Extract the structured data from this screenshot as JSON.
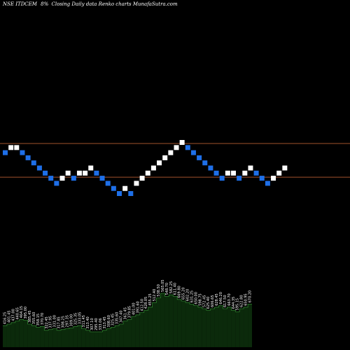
{
  "header": {
    "symbol": "NSE ITDCEM",
    "percent_box": "8%",
    "tail": "Closing Daily data  Renko  charts MunafaSutra.com"
  },
  "colors": {
    "background": "#000000",
    "up_brick": "#ffffff",
    "down_brick": "#1e6fe8",
    "line": "#a0522d",
    "volume_fill": "#0b2a0b",
    "volume_edge": "#2e7d2e"
  },
  "chart_data": {
    "type": "renko",
    "box_size_percent": 8,
    "bricks": [
      {
        "level": 3,
        "dir": "down"
      },
      {
        "level": 4,
        "dir": "up"
      },
      {
        "level": 4,
        "dir": "up"
      },
      {
        "level": 3,
        "dir": "down"
      },
      {
        "level": 2,
        "dir": "down"
      },
      {
        "level": 1,
        "dir": "down"
      },
      {
        "level": 0,
        "dir": "down"
      },
      {
        "level": -1,
        "dir": "down"
      },
      {
        "level": -2,
        "dir": "down"
      },
      {
        "level": -3,
        "dir": "down"
      },
      {
        "level": -2,
        "dir": "up"
      },
      {
        "level": -1,
        "dir": "up"
      },
      {
        "level": -2,
        "dir": "down"
      },
      {
        "level": -1,
        "dir": "up"
      },
      {
        "level": -1,
        "dir": "up"
      },
      {
        "level": 0,
        "dir": "up"
      },
      {
        "level": -1,
        "dir": "down"
      },
      {
        "level": -2,
        "dir": "down"
      },
      {
        "level": -3,
        "dir": "down"
      },
      {
        "level": -4,
        "dir": "down"
      },
      {
        "level": -5,
        "dir": "down"
      },
      {
        "level": -4,
        "dir": "up"
      },
      {
        "level": -5,
        "dir": "down"
      },
      {
        "level": -3,
        "dir": "up"
      },
      {
        "level": -2,
        "dir": "up"
      },
      {
        "level": -1,
        "dir": "up"
      },
      {
        "level": 0,
        "dir": "up"
      },
      {
        "level": 1,
        "dir": "up"
      },
      {
        "level": 2,
        "dir": "up"
      },
      {
        "level": 3,
        "dir": "up"
      },
      {
        "level": 4,
        "dir": "up"
      },
      {
        "level": 5,
        "dir": "up"
      },
      {
        "level": 4,
        "dir": "down"
      },
      {
        "level": 3,
        "dir": "down"
      },
      {
        "level": 2,
        "dir": "down"
      },
      {
        "level": 1,
        "dir": "down"
      },
      {
        "level": 0,
        "dir": "down"
      },
      {
        "level": -1,
        "dir": "down"
      },
      {
        "level": -2,
        "dir": "down"
      },
      {
        "level": -1,
        "dir": "up"
      },
      {
        "level": -1,
        "dir": "up"
      },
      {
        "level": -2,
        "dir": "down"
      },
      {
        "level": -1,
        "dir": "up"
      },
      {
        "level": 0,
        "dir": "up"
      },
      {
        "level": -1,
        "dir": "down"
      },
      {
        "level": -2,
        "dir": "down"
      },
      {
        "level": -3,
        "dir": "down"
      },
      {
        "level": -2,
        "dir": "up"
      },
      {
        "level": -1,
        "dir": "up"
      },
      {
        "level": 0,
        "dir": "up"
      }
    ],
    "reference_lines": [
      {
        "level": 4.8
      },
      {
        "level": -1.8
      }
    ],
    "volume_bars": [
      {
        "label": "416.25",
        "value": 0.28
      },
      {
        "label": "401.45",
        "value": 0.3
      },
      {
        "label": "437.00",
        "value": 0.32
      },
      {
        "label": "440.65",
        "value": 0.34
      },
      {
        "label": "464.15",
        "value": 0.36
      },
      {
        "label": "395.00",
        "value": 0.35
      },
      {
        "label": "385.45",
        "value": 0.3
      },
      {
        "label": "355.60",
        "value": 0.28
      },
      {
        "label": "358.15",
        "value": 0.26
      },
      {
        "label": "370.70",
        "value": 0.27
      },
      {
        "label": "322.45",
        "value": 0.22
      },
      {
        "label": "337.95",
        "value": 0.23
      },
      {
        "label": "331.00",
        "value": 0.24
      },
      {
        "label": "317.85",
        "value": 0.22
      },
      {
        "label": "308.25",
        "value": 0.23
      },
      {
        "label": "297.35",
        "value": 0.24
      },
      {
        "label": "309.00",
        "value": 0.25
      },
      {
        "label": "325.35",
        "value": 0.27
      },
      {
        "label": "333.05",
        "value": 0.28
      },
      {
        "label": "311.45",
        "value": 0.24
      },
      {
        "label": "313.40",
        "value": 0.22
      },
      {
        "label": "307.10",
        "value": 0.2
      },
      {
        "label": "295.40",
        "value": 0.2
      },
      {
        "label": "333.06",
        "value": 0.2
      },
      {
        "label": "313.45",
        "value": 0.22
      },
      {
        "label": "308.60",
        "value": 0.24
      },
      {
        "label": "325.45",
        "value": 0.26
      },
      {
        "label": "335.60",
        "value": 0.28
      },
      {
        "label": "347.40",
        "value": 0.3
      },
      {
        "label": "361.45",
        "value": 0.34
      },
      {
        "label": "379.85",
        "value": 0.36
      },
      {
        "label": "401.00",
        "value": 0.4
      },
      {
        "label": "391.60",
        "value": 0.42
      },
      {
        "label": "412.50",
        "value": 0.45
      },
      {
        "label": "428.05",
        "value": 0.48
      },
      {
        "label": "455.25",
        "value": 0.52
      },
      {
        "label": "512.40",
        "value": 0.58
      },
      {
        "label": "538.50",
        "value": 0.64
      },
      {
        "label": "565.05",
        "value": 0.7
      },
      {
        "label": "548.70",
        "value": 0.66
      },
      {
        "label": "582.25",
        "value": 0.68
      },
      {
        "label": "611.40",
        "value": 0.66
      },
      {
        "label": "669.80",
        "value": 0.62
      },
      {
        "label": "655.20",
        "value": 0.6
      },
      {
        "label": "602.20",
        "value": 0.58
      },
      {
        "label": "631.25",
        "value": 0.56
      },
      {
        "label": "650.00",
        "value": 0.54
      },
      {
        "label": "598.75",
        "value": 0.52
      },
      {
        "label": "572.45",
        "value": 0.5
      },
      {
        "label": "625.40",
        "value": 0.48
      },
      {
        "label": "606.65",
        "value": 0.5
      },
      {
        "label": "628.45",
        "value": 0.52
      },
      {
        "label": "646.20",
        "value": 0.54
      },
      {
        "label": "617.50",
        "value": 0.5
      },
      {
        "label": "663.70",
        "value": 0.52
      },
      {
        "label": "644.35",
        "value": 0.48
      },
      {
        "label": "595.15",
        "value": 0.46
      },
      {
        "label": "622.80",
        "value": 0.5
      },
      {
        "label": "650.95",
        "value": 0.52
      },
      {
        "label": "670.20",
        "value": 0.56
      }
    ]
  }
}
